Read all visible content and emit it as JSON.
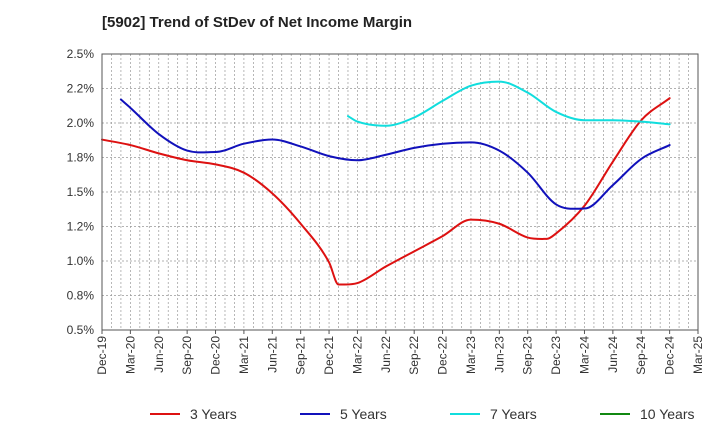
{
  "chart_data": {
    "type": "line",
    "title": "[5902]  Trend of StDev of Net Income Margin",
    "xlabel": "",
    "ylabel": "",
    "x_ticks": [
      "Dec-19",
      "Mar-20",
      "Jun-20",
      "Sep-20",
      "Dec-20",
      "Mar-21",
      "Jun-21",
      "Sep-21",
      "Dec-21",
      "Mar-22",
      "Jun-22",
      "Sep-22",
      "Dec-22",
      "Mar-23",
      "Jun-23",
      "Sep-23",
      "Dec-23",
      "Mar-24",
      "Jun-24",
      "Sep-24",
      "Dec-24",
      "Mar-25"
    ],
    "y_ticks": [
      "0.5%",
      "0.8%",
      "1.0%",
      "1.2%",
      "1.5%",
      "1.8%",
      "2.0%",
      "2.2%",
      "2.5%"
    ],
    "ylim": [
      0.5,
      2.5
    ],
    "grid": true,
    "legend_position": "bottom",
    "series": [
      {
        "name": "3 Years",
        "color": "#dd1111",
        "points": [
          [
            "Dec-19",
            1.88
          ],
          [
            "Mar-20",
            1.84
          ],
          [
            "Jun-20",
            1.78
          ],
          [
            "Sep-20",
            1.73
          ],
          [
            "Dec-20",
            1.7
          ],
          [
            "Mar-21",
            1.64
          ],
          [
            "Jun-21",
            1.49
          ],
          [
            "Sep-21",
            1.27
          ],
          [
            "Dec-21",
            0.99
          ],
          [
            "Jan-22",
            0.83
          ],
          [
            "Mar-22",
            0.84
          ],
          [
            "Jun-22",
            0.96
          ],
          [
            "Sep-22",
            1.07
          ],
          [
            "Dec-22",
            1.18
          ],
          [
            "Mar-23",
            1.3
          ],
          [
            "Jun-23",
            1.27
          ],
          [
            "Sep-23",
            1.17
          ],
          [
            "Nov-23",
            1.16
          ],
          [
            "Dec-23",
            1.2
          ],
          [
            "Mar-24",
            1.4
          ],
          [
            "Jun-24",
            1.72
          ],
          [
            "Sep-24",
            2.02
          ],
          [
            "Dec-24",
            2.18
          ]
        ]
      },
      {
        "name": "5 Years",
        "color": "#1111bb",
        "points": [
          [
            "Feb-20",
            2.17
          ],
          [
            "Mar-20",
            2.11
          ],
          [
            "Jun-20",
            1.92
          ],
          [
            "Sep-20",
            1.8
          ],
          [
            "Dec-20",
            1.79
          ],
          [
            "Mar-21",
            1.85
          ],
          [
            "Jun-21",
            1.88
          ],
          [
            "Sep-21",
            1.83
          ],
          [
            "Dec-21",
            1.76
          ],
          [
            "Mar-22",
            1.73
          ],
          [
            "Jun-22",
            1.77
          ],
          [
            "Sep-22",
            1.82
          ],
          [
            "Dec-22",
            1.85
          ],
          [
            "Mar-23",
            1.86
          ],
          [
            "Jun-23",
            1.8
          ],
          [
            "Sep-23",
            1.64
          ],
          [
            "Dec-23",
            1.41
          ],
          [
            "Mar-24",
            1.38
          ],
          [
            "Jun-24",
            1.55
          ],
          [
            "Sep-24",
            1.74
          ],
          [
            "Dec-24",
            1.84
          ]
        ]
      },
      {
        "name": "7 Years",
        "color": "#11dddd",
        "points": [
          [
            "Feb-22",
            2.05
          ],
          [
            "Mar-22",
            2.01
          ],
          [
            "Jun-22",
            1.98
          ],
          [
            "Sep-22",
            2.04
          ],
          [
            "Dec-22",
            2.16
          ],
          [
            "Mar-23",
            2.27
          ],
          [
            "Jun-23",
            2.3
          ],
          [
            "Sep-23",
            2.22
          ],
          [
            "Dec-23",
            2.08
          ],
          [
            "Mar-24",
            2.02
          ],
          [
            "Jun-24",
            2.02
          ],
          [
            "Sep-24",
            2.01
          ],
          [
            "Dec-24",
            1.99
          ]
        ]
      },
      {
        "name": "10 Years",
        "color": "#118811",
        "points": []
      }
    ]
  }
}
